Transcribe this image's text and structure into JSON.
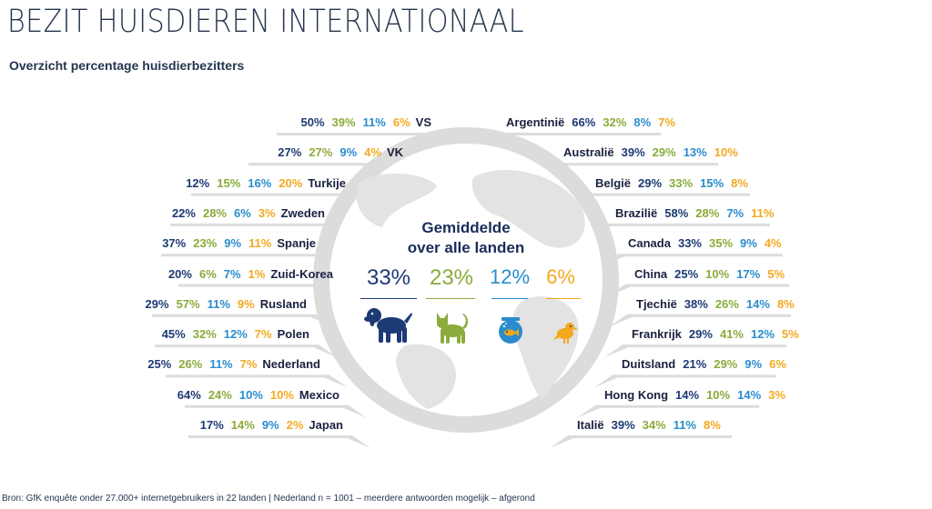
{
  "title": "BEZIT HUISDIEREN INTERNATIONAAL",
  "subtitle": "Overzicht percentage huisdierbezitters",
  "colors": {
    "dog": "#1c3a74",
    "cat": "#8bab3b",
    "fish": "#2a8ccd",
    "bird": "#f2a91f",
    "globe": "#dcdcdc"
  },
  "average": {
    "heading_line1": "Gemiddelde",
    "heading_line2": "over alle landen",
    "dog": "33%",
    "cat": "23%",
    "fish": "12%",
    "bird": "6%",
    "icons": [
      "dog-icon",
      "cat-icon",
      "fishbowl-icon",
      "bird-icon"
    ]
  },
  "source": "Bron: GfK enquête onder 27.000+ internetgebruikers in 22 landen | Nederland n = 1001 – meerdere antwoorden mogelijk – afgerond",
  "chart_data": {
    "type": "table",
    "series": [
      "Hond",
      "Kat",
      "Vis",
      "Vogel"
    ],
    "left": [
      {
        "country": "VS",
        "values": [
          "50%",
          "39%",
          "11%",
          "6%"
        ]
      },
      {
        "country": "VK",
        "values": [
          "27%",
          "27%",
          "9%",
          "4%"
        ]
      },
      {
        "country": "Turkije",
        "values": [
          "12%",
          "15%",
          "16%",
          "20%"
        ]
      },
      {
        "country": "Zweden",
        "values": [
          "22%",
          "28%",
          "6%",
          "3%"
        ]
      },
      {
        "country": "Spanje",
        "values": [
          "37%",
          "23%",
          "9%",
          "11%"
        ]
      },
      {
        "country": "Zuid-Korea",
        "values": [
          "20%",
          "6%",
          "7%",
          "1%"
        ]
      },
      {
        "country": "Rusland",
        "values": [
          "29%",
          "57%",
          "11%",
          "9%"
        ]
      },
      {
        "country": "Polen",
        "values": [
          "45%",
          "32%",
          "12%",
          "7%"
        ]
      },
      {
        "country": "Nederland",
        "values": [
          "25%",
          "26%",
          "11%",
          "7%"
        ]
      },
      {
        "country": "Mexico",
        "values": [
          "64%",
          "24%",
          "10%",
          "10%"
        ]
      },
      {
        "country": "Japan",
        "values": [
          "17%",
          "14%",
          "9%",
          "2%"
        ]
      }
    ],
    "right": [
      {
        "country": "Argentinië",
        "values": [
          "66%",
          "32%",
          "8%",
          "7%"
        ]
      },
      {
        "country": "Australië",
        "values": [
          "39%",
          "29%",
          "13%",
          "10%"
        ]
      },
      {
        "country": "België",
        "values": [
          "29%",
          "33%",
          "15%",
          "8%"
        ]
      },
      {
        "country": "Brazilië",
        "values": [
          "58%",
          "28%",
          "7%",
          "11%"
        ]
      },
      {
        "country": "Canada",
        "values": [
          "33%",
          "35%",
          "9%",
          "4%"
        ]
      },
      {
        "country": "China",
        "values": [
          "25%",
          "10%",
          "17%",
          "5%"
        ]
      },
      {
        "country": "Tjechië",
        "values": [
          "38%",
          "26%",
          "14%",
          "8%"
        ]
      },
      {
        "country": "Frankrijk",
        "values": [
          "29%",
          "41%",
          "12%",
          "5%"
        ]
      },
      {
        "country": "Duitsland",
        "values": [
          "21%",
          "29%",
          "9%",
          "6%"
        ]
      },
      {
        "country": "Hong Kong",
        "values": [
          "14%",
          "10%",
          "14%",
          "3%"
        ]
      },
      {
        "country": "Italië",
        "values": [
          "39%",
          "34%",
          "11%",
          "8%"
        ]
      }
    ]
  }
}
